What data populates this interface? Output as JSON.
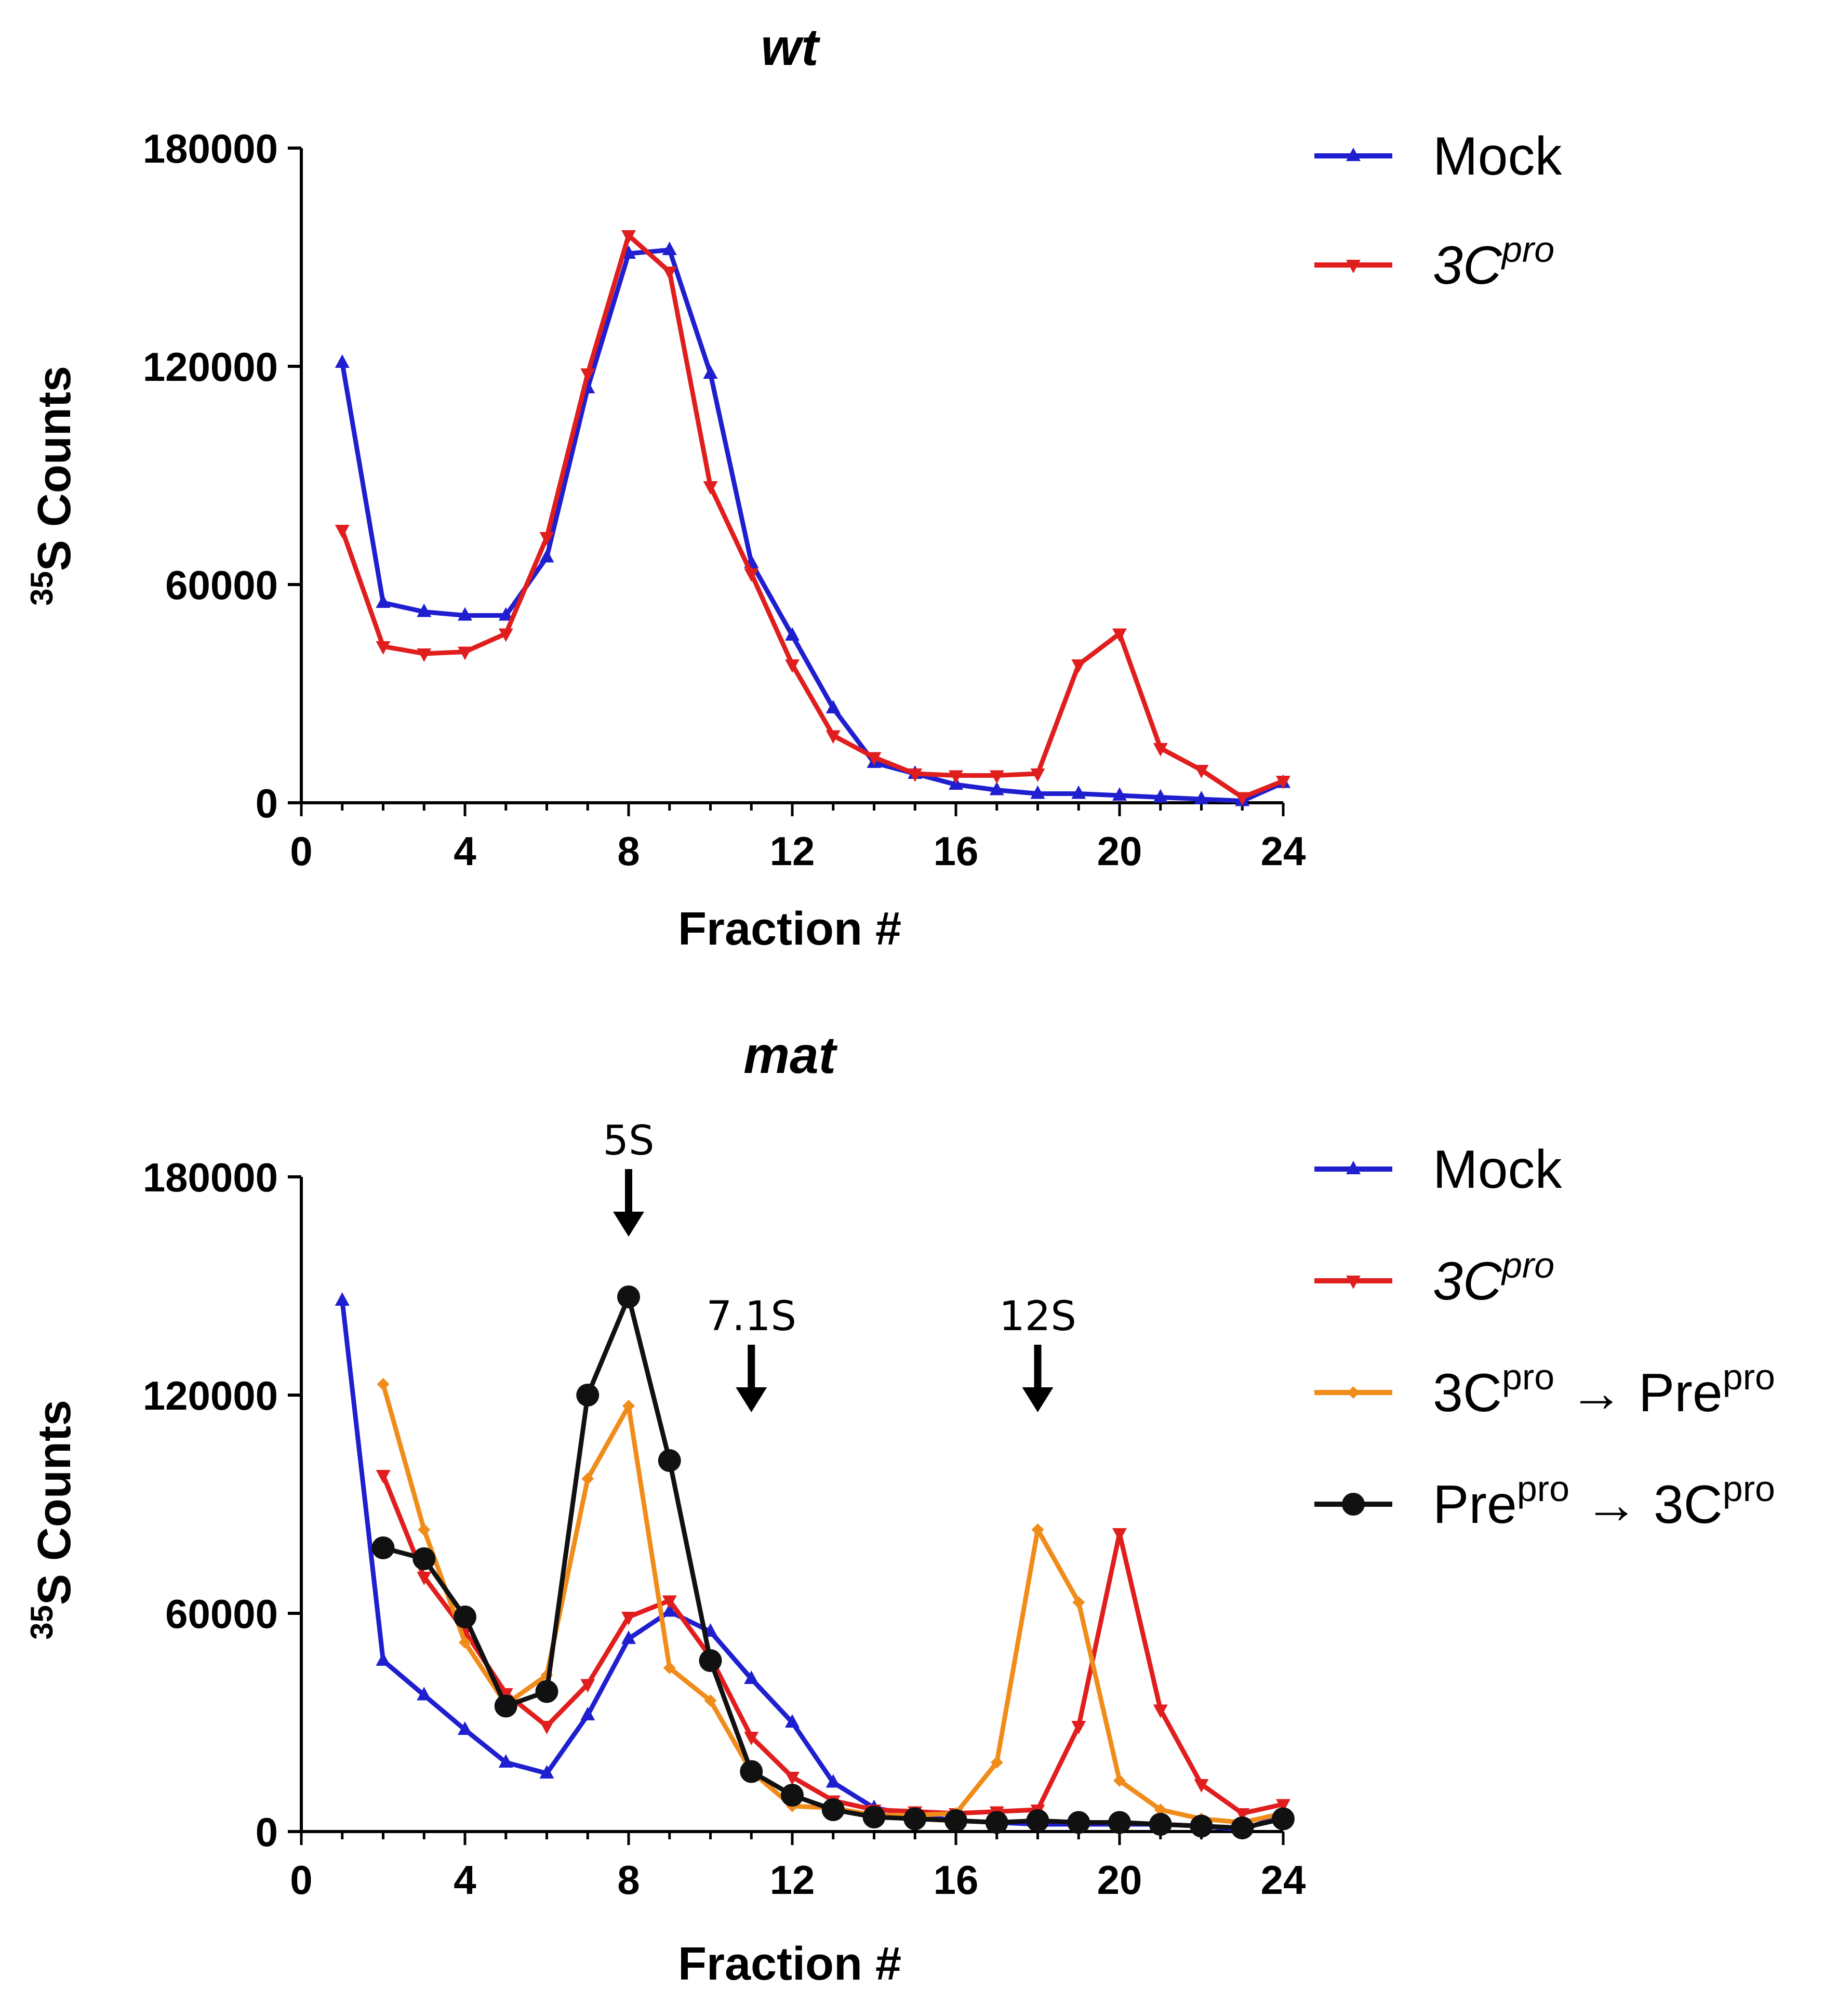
{
  "chart_data": [
    {
      "type": "line",
      "title": "wt",
      "xlabel": "Fraction #",
      "ylabel": {
        "superscript": "35",
        "text": "S Counts"
      },
      "xlim": [
        0,
        24
      ],
      "ylim": [
        0,
        180000
      ],
      "xticks": [
        "0",
        "4",
        "8",
        "12",
        "16",
        "20",
        "24"
      ],
      "yticks": [
        "0",
        "60000",
        "120000",
        "180000"
      ],
      "legend_position": "top-right",
      "annotations": [],
      "series": [
        {
          "name": "Mock",
          "label_main": "Mock",
          "color": "#1f1fd0",
          "marker": "triangle-up",
          "x": [
            1,
            2,
            3,
            4,
            5,
            6,
            7,
            8,
            9,
            10,
            11,
            12,
            13,
            14,
            15,
            16,
            17,
            18,
            19,
            20,
            21,
            22,
            23,
            24
          ],
          "values": [
            121000,
            55000,
            52500,
            51500,
            51500,
            67500,
            114000,
            151000,
            152000,
            118000,
            66000,
            46000,
            26000,
            11000,
            8000,
            5000,
            3500,
            2500,
            2500,
            2000,
            1500,
            1000,
            500,
            5500
          ]
        },
        {
          "name": "3Cpro",
          "label_main": "3C",
          "label_sup": "pro",
          "label_italic": true,
          "color": "#e01e1e",
          "marker": "triangle-down",
          "x": [
            1,
            2,
            3,
            4,
            5,
            6,
            7,
            8,
            9,
            10,
            11,
            12,
            13,
            14,
            15,
            16,
            17,
            18,
            19,
            20,
            21,
            22,
            23,
            24
          ],
          "values": [
            75000,
            43000,
            41000,
            41500,
            46500,
            73000,
            118000,
            156000,
            146000,
            87000,
            63000,
            38000,
            18500,
            12500,
            8000,
            7500,
            7500,
            8000,
            38000,
            46500,
            15000,
            9000,
            1500,
            6000
          ]
        }
      ]
    },
    {
      "type": "line",
      "title": "mat",
      "xlabel": "Fraction #",
      "ylabel": {
        "superscript": "35",
        "text": "S Counts"
      },
      "xlim": [
        0,
        24
      ],
      "ylim": [
        0,
        180000
      ],
      "xticks": [
        "0",
        "4",
        "8",
        "12",
        "16",
        "20",
        "24"
      ],
      "yticks": [
        "0",
        "60000",
        "120000",
        "180000"
      ],
      "legend_position": "top-right",
      "annotations": [
        {
          "label": "5S",
          "x": 8
        },
        {
          "label": "7.1S",
          "x": 11
        },
        {
          "label": "12S",
          "x": 18
        }
      ],
      "series": [
        {
          "name": "Mock",
          "label_main": "Mock",
          "color": "#1f1fd0",
          "marker": "triangle-up",
          "x": [
            1,
            2,
            3,
            4,
            5,
            6,
            7,
            8,
            9,
            10,
            11,
            12,
            13,
            14,
            15,
            16,
            17,
            18,
            19,
            20,
            21,
            22,
            23,
            24
          ],
          "values": [
            146000,
            47000,
            37500,
            28000,
            19000,
            16000,
            32000,
            53000,
            60500,
            55000,
            42000,
            30000,
            13500,
            6500,
            4500,
            3000,
            2500,
            2000,
            2000,
            2000,
            2000,
            1500,
            500,
            4500
          ]
        },
        {
          "name": "3Cpro",
          "label_main": "3C",
          "label_sup": "pro",
          "label_italic": true,
          "color": "#e01e1e",
          "marker": "triangle-down",
          "x": [
            2,
            3,
            4,
            5,
            6,
            7,
            8,
            9,
            10,
            11,
            12,
            13,
            14,
            15,
            16,
            17,
            18,
            19,
            20,
            21,
            22,
            23,
            24
          ],
          "values": [
            98000,
            70000,
            55000,
            38000,
            29000,
            40500,
            59000,
            63500,
            48000,
            26000,
            15000,
            8500,
            6000,
            5500,
            5000,
            5500,
            6000,
            29000,
            82000,
            33500,
            13000,
            5000,
            7500
          ]
        },
        {
          "name": "3Cpro→Prepro",
          "label_main": "3C",
          "label_sup": "pro",
          "label_arrow": "→",
          "label_main2": "Pre",
          "label_sup2": "pro",
          "color": "#f08c1a",
          "marker": "diamond",
          "x": [
            2,
            3,
            4,
            5,
            6,
            7,
            8,
            9,
            10,
            11,
            12,
            13,
            14,
            15,
            16,
            17,
            18,
            19,
            20,
            21,
            22,
            23,
            24
          ],
          "values": [
            123000,
            83000,
            52000,
            35000,
            43000,
            97000,
            117000,
            45000,
            36000,
            16500,
            7000,
            6500,
            4500,
            4500,
            5000,
            19000,
            83000,
            63000,
            14000,
            6000,
            3500,
            2500,
            5000
          ]
        },
        {
          "name": "Prepro→3Cpro",
          "label_main": "Pre",
          "label_sup": "pro",
          "label_arrow": "→",
          "label_main2": "3C",
          "label_sup2": "pro",
          "color": "#111111",
          "marker": "circle",
          "x": [
            2,
            3,
            4,
            5,
            6,
            7,
            8,
            9,
            10,
            11,
            12,
            13,
            14,
            15,
            16,
            17,
            18,
            19,
            20,
            21,
            22,
            23,
            24
          ],
          "values": [
            78000,
            75000,
            59000,
            34500,
            38500,
            120000,
            147000,
            102000,
            47000,
            16500,
            10000,
            6000,
            4000,
            3500,
            3000,
            2500,
            3000,
            2500,
            2500,
            2000,
            1500,
            1000,
            3500
          ]
        }
      ]
    }
  ]
}
